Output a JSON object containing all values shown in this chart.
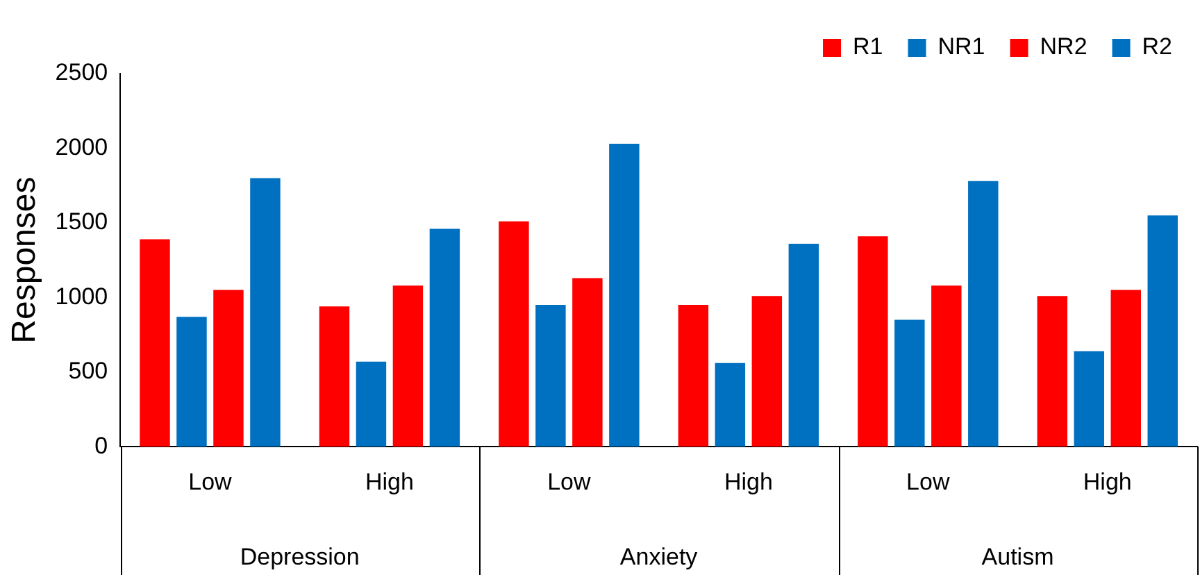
{
  "chart_data": {
    "type": "bar",
    "ylabel": "Responses",
    "categories": [
      "Low",
      "High",
      "Low",
      "High",
      "Low",
      "High"
    ],
    "annotations": [
      "Depression",
      "Anxiety",
      "Autism"
    ],
    "series": [
      {
        "name": "R1",
        "color": "#ff0000",
        "values": [
          1390,
          940,
          1510,
          950,
          1410,
          1010
        ]
      },
      {
        "name": "NR1",
        "color": "#0070c0",
        "values": [
          870,
          570,
          950,
          560,
          850,
          640
        ]
      },
      {
        "name": "NR2",
        "color": "#ff0000",
        "values": [
          1050,
          1080,
          1130,
          1010,
          1080,
          1050
        ]
      },
      {
        "name": "R2",
        "color": "#0070c0",
        "values": [
          1800,
          1460,
          2030,
          1360,
          1780,
          1550
        ]
      }
    ],
    "ylim": [
      0,
      2500
    ],
    "yticks": [
      0,
      500,
      1000,
      1500,
      2000,
      2500
    ],
    "grid": false,
    "legend": "top right"
  }
}
